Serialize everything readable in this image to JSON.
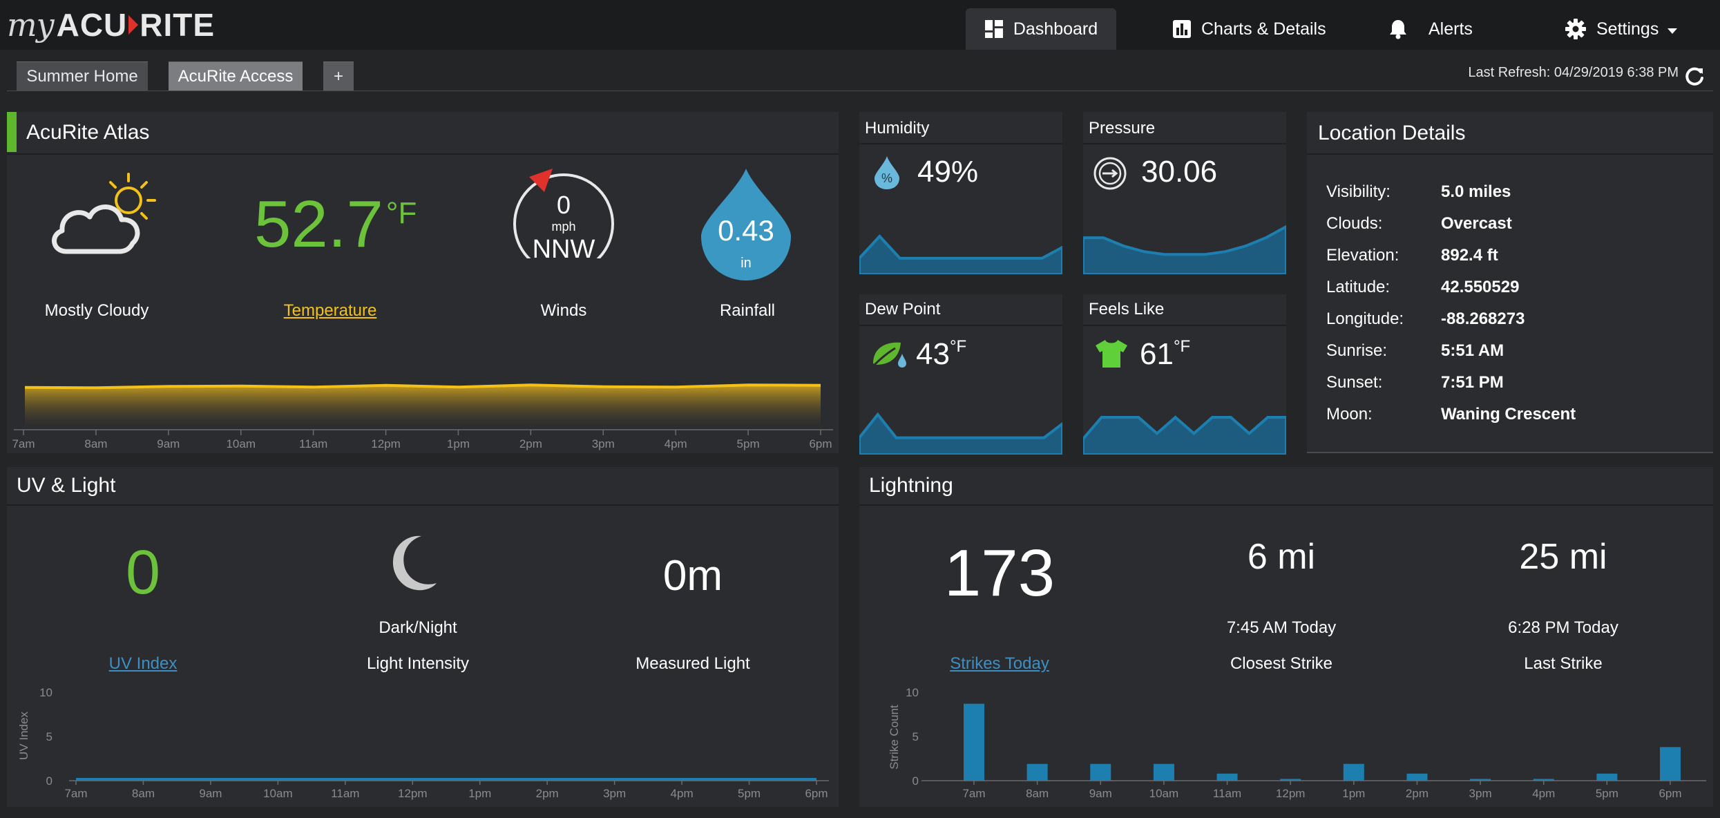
{
  "app": {
    "logo_my": "my",
    "logo_acu": "ACU",
    "logo_rite": "RITE"
  },
  "nav": {
    "dashboard": "Dashboard",
    "charts": "Charts & Details",
    "alerts": "Alerts",
    "settings": "Settings"
  },
  "locations": {
    "tabs": [
      "Summer Home",
      "AcuRite Access",
      "+"
    ],
    "active": "AcuRite Access"
  },
  "refresh": {
    "text": "Last Refresh: 04/29/2019 6:38 PM"
  },
  "atlas": {
    "title": "AcuRite Atlas",
    "condition": "Mostly Cloudy",
    "temperature": "52.7",
    "temp_unit": "°F",
    "temperature_label": "Temperature",
    "wind_speed": "0",
    "wind_unit": "mph",
    "wind_dir": "NNW",
    "winds_label": "Winds",
    "rain_value": "0.43",
    "rain_unit": "in",
    "rain_label": "Rainfall"
  },
  "humidity": {
    "title": "Humidity",
    "value": "49%"
  },
  "pressure": {
    "title": "Pressure",
    "value": "30.06"
  },
  "dewpoint": {
    "title": "Dew Point",
    "value": "43",
    "unit": "°F"
  },
  "feelslike": {
    "title": "Feels Like",
    "value": "61",
    "unit": "°F"
  },
  "location": {
    "title": "Location Details",
    "rows": [
      {
        "label": "Visibility:",
        "value": "5.0 miles"
      },
      {
        "label": "Clouds:",
        "value": "Overcast"
      },
      {
        "label": "Elevation:",
        "value": "892.4 ft"
      },
      {
        "label": "Latitude:",
        "value": "42.550529"
      },
      {
        "label": "Longitude:",
        "value": "-88.268273"
      },
      {
        "label": "Sunrise:",
        "value": "5:51 AM"
      },
      {
        "label": "Sunset:",
        "value": "7:51 PM"
      },
      {
        "label": "Moon:",
        "value": "Waning Crescent"
      }
    ]
  },
  "uv": {
    "title": "UV & Light",
    "uv_value": "0",
    "uv_label": "UV Index",
    "light_state": "Dark/Night",
    "light_label": "Light Intensity",
    "measured_value": "0m",
    "measured_label": "Measured Light"
  },
  "lightning": {
    "title": "Lightning",
    "strikes": "173",
    "strikes_label": "Strikes Today",
    "closest_value": "6 mi",
    "closest_time": "7:45 AM Today",
    "closest_label": "Closest Strike",
    "last_value": "25 mi",
    "last_time": "6:28 PM Today",
    "last_label": "Last Strike"
  },
  "colors": {
    "accent_green": "#5fb72e",
    "temp_yellow": "#f2c21b",
    "link_blue": "#3d8fc4",
    "chart_blue": "#1d7fb0",
    "rain_blue": "#3b98c2"
  },
  "chart_data": [
    {
      "type": "area",
      "name": "temperature-trend",
      "x": [
        "7am",
        "8am",
        "9am",
        "10am",
        "11am",
        "12pm",
        "1pm",
        "2pm",
        "3pm",
        "4pm",
        "5pm",
        "6pm"
      ],
      "values": [
        52.0,
        51.9,
        52.3,
        52.4,
        52.1,
        52.6,
        52.1,
        52.7,
        52.2,
        52.1,
        52.7,
        52.6
      ],
      "ylim": [
        0,
        60
      ],
      "grid": false
    },
    {
      "type": "area",
      "name": "humidity-trend",
      "values": [
        48,
        52,
        48,
        48,
        48,
        48,
        48,
        48,
        48,
        48,
        50
      ]
    },
    {
      "type": "area",
      "name": "pressure-trend",
      "values": [
        30.1,
        30.1,
        30.07,
        30.05,
        30.04,
        30.04,
        30.04,
        30.05,
        30.07,
        30.1,
        30.14
      ]
    },
    {
      "type": "area",
      "name": "dewpoint-trend",
      "values": [
        42,
        47,
        42,
        42,
        42,
        42,
        42,
        42,
        42,
        42,
        42,
        45
      ]
    },
    {
      "type": "area",
      "name": "feelslike-trend",
      "values": [
        59,
        63,
        63,
        63,
        60,
        63,
        60,
        63,
        63,
        60,
        63,
        63
      ]
    },
    {
      "type": "line",
      "name": "uv-index",
      "x": [
        "7am",
        "8am",
        "9am",
        "10am",
        "11am",
        "12pm",
        "1pm",
        "2pm",
        "3pm",
        "4pm",
        "5pm",
        "6pm"
      ],
      "values": [
        0,
        0,
        0,
        0,
        0,
        0,
        0,
        0,
        0,
        0,
        0,
        0
      ],
      "ylabel": "UV Index",
      "ylim": [
        0,
        10
      ],
      "yticks": [
        0,
        5,
        10
      ]
    },
    {
      "type": "bar",
      "name": "strike-count",
      "categories": [
        "7am",
        "8am",
        "9am",
        "10am",
        "11am",
        "12pm",
        "1pm",
        "2pm",
        "3pm",
        "4pm",
        "5pm",
        "6pm"
      ],
      "values": [
        8.7,
        1.9,
        1.9,
        1.9,
        0.8,
        0.2,
        1.9,
        0.8,
        0.2,
        0.2,
        0.8,
        3.8
      ],
      "ylabel": "Strike Count",
      "ylim": [
        0,
        10
      ],
      "yticks": [
        0,
        5,
        10
      ]
    }
  ]
}
